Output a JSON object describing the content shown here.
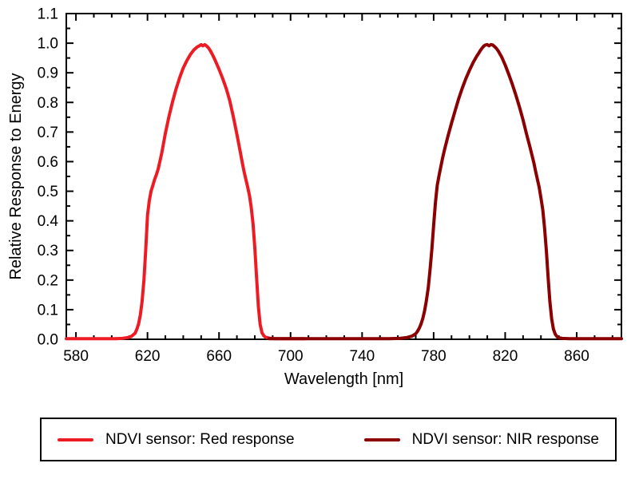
{
  "chart_data": {
    "type": "line",
    "title": "",
    "xlabel": "Wavelength [nm]",
    "ylabel": "Relative Response to Energy",
    "xlim": [
      574.6,
      885
    ],
    "ylim": [
      0,
      1.1
    ],
    "x_major_ticks": [
      580,
      620,
      660,
      700,
      740,
      780,
      820,
      860
    ],
    "x_minor_step": 10,
    "x_minor_range": [
      590,
      880
    ],
    "y_major_ticks": [
      0.0,
      0.1,
      0.2,
      0.3,
      0.4,
      0.5,
      0.6,
      0.7,
      0.8,
      0.9,
      1.0,
      1.1
    ],
    "y_minor_step": 0.05,
    "grid": false,
    "frame": true,
    "tick_direction": "in",
    "legend_position": "bottom",
    "axis_color": "#000000",
    "background_color": "#ffffff",
    "series": [
      {
        "name": "NDVI sensor: Red response",
        "color": "#ed1c24",
        "line_width": 4,
        "points": [
          [
            574.6,
            0.002
          ],
          [
            585,
            0.002
          ],
          [
            595,
            0.002
          ],
          [
            602,
            0.002
          ],
          [
            606,
            0.003
          ],
          [
            609,
            0.006
          ],
          [
            611,
            0.01
          ],
          [
            613,
            0.02
          ],
          [
            614,
            0.033
          ],
          [
            615,
            0.052
          ],
          [
            616,
            0.082
          ],
          [
            617,
            0.128
          ],
          [
            618,
            0.2
          ],
          [
            619,
            0.3
          ],
          [
            620,
            0.42
          ],
          [
            621,
            0.468
          ],
          [
            622,
            0.5
          ],
          [
            623,
            0.52
          ],
          [
            624,
            0.54
          ],
          [
            625,
            0.556
          ],
          [
            626,
            0.576
          ],
          [
            628,
            0.63
          ],
          [
            630,
            0.695
          ],
          [
            632,
            0.752
          ],
          [
            634,
            0.802
          ],
          [
            636,
            0.846
          ],
          [
            638,
            0.884
          ],
          [
            640,
            0.916
          ],
          [
            642,
            0.941
          ],
          [
            644,
            0.962
          ],
          [
            646,
            0.978
          ],
          [
            648,
            0.988
          ],
          [
            649,
            0.991
          ],
          [
            650,
            0.995
          ],
          [
            651,
            0.991
          ],
          [
            652,
            0.995
          ],
          [
            653,
            0.991
          ],
          [
            654,
            0.985
          ],
          [
            655,
            0.976
          ],
          [
            656,
            0.965
          ],
          [
            657,
            0.953
          ],
          [
            658,
            0.94
          ],
          [
            660,
            0.912
          ],
          [
            662,
            0.881
          ],
          [
            664,
            0.847
          ],
          [
            666,
            0.806
          ],
          [
            668,
            0.752
          ],
          [
            670,
            0.692
          ],
          [
            671,
            0.661
          ],
          [
            672,
            0.629
          ],
          [
            673,
            0.597
          ],
          [
            674,
            0.566
          ],
          [
            675,
            0.54
          ],
          [
            676,
            0.515
          ],
          [
            677,
            0.486
          ],
          [
            678,
            0.446
          ],
          [
            679,
            0.39
          ],
          [
            680,
            0.31
          ],
          [
            681,
            0.21
          ],
          [
            682,
            0.11
          ],
          [
            683,
            0.05
          ],
          [
            684,
            0.022
          ],
          [
            685,
            0.012
          ],
          [
            686,
            0.007
          ],
          [
            688,
            0.004
          ],
          [
            691,
            0.002
          ],
          [
            700,
            0.002
          ],
          [
            708,
            0.002
          ]
        ]
      },
      {
        "name": "NDVI sensor: NIR response",
        "color": "#8b0000",
        "line_width": 4,
        "points": [
          [
            688,
            0.002
          ],
          [
            700,
            0.002
          ],
          [
            715,
            0.002
          ],
          [
            730,
            0.002
          ],
          [
            745,
            0.002
          ],
          [
            755,
            0.002
          ],
          [
            761,
            0.003
          ],
          [
            765,
            0.006
          ],
          [
            768,
            0.011
          ],
          [
            770,
            0.019
          ],
          [
            771,
            0.027
          ],
          [
            772,
            0.038
          ],
          [
            773,
            0.052
          ],
          [
            774,
            0.072
          ],
          [
            775,
            0.098
          ],
          [
            776,
            0.132
          ],
          [
            777,
            0.175
          ],
          [
            778,
            0.235
          ],
          [
            779,
            0.305
          ],
          [
            780,
            0.385
          ],
          [
            781,
            0.46
          ],
          [
            782,
            0.52
          ],
          [
            783,
            0.552
          ],
          [
            784,
            0.583
          ],
          [
            785,
            0.612
          ],
          [
            786,
            0.638
          ],
          [
            788,
            0.686
          ],
          [
            790,
            0.73
          ],
          [
            792,
            0.772
          ],
          [
            794,
            0.812
          ],
          [
            796,
            0.848
          ],
          [
            798,
            0.88
          ],
          [
            800,
            0.908
          ],
          [
            802,
            0.934
          ],
          [
            804,
            0.955
          ],
          [
            805,
            0.964
          ],
          [
            806,
            0.974
          ],
          [
            807,
            0.983
          ],
          [
            808,
            0.99
          ],
          [
            809,
            0.994
          ],
          [
            810,
            0.995
          ],
          [
            811,
            0.991
          ],
          [
            812,
            0.995
          ],
          [
            813,
            0.994
          ],
          [
            814,
            0.989
          ],
          [
            815,
            0.983
          ],
          [
            816,
            0.975
          ],
          [
            818,
            0.954
          ],
          [
            820,
            0.926
          ],
          [
            822,
            0.895
          ],
          [
            824,
            0.861
          ],
          [
            826,
            0.824
          ],
          [
            828,
            0.784
          ],
          [
            830,
            0.74
          ],
          [
            832,
            0.692
          ],
          [
            834,
            0.646
          ],
          [
            835,
            0.622
          ],
          [
            836,
            0.597
          ],
          [
            837,
            0.568
          ],
          [
            838,
            0.54
          ],
          [
            839,
            0.514
          ],
          [
            840,
            0.478
          ],
          [
            841,
            0.438
          ],
          [
            842,
            0.378
          ],
          [
            843,
            0.3
          ],
          [
            844,
            0.21
          ],
          [
            845,
            0.128
          ],
          [
            846,
            0.068
          ],
          [
            847,
            0.034
          ],
          [
            848,
            0.017
          ],
          [
            849,
            0.009
          ],
          [
            850,
            0.005
          ],
          [
            852,
            0.003
          ],
          [
            856,
            0.002
          ],
          [
            865,
            0.002
          ],
          [
            875,
            0.002
          ],
          [
            885,
            0.002
          ]
        ]
      }
    ]
  }
}
